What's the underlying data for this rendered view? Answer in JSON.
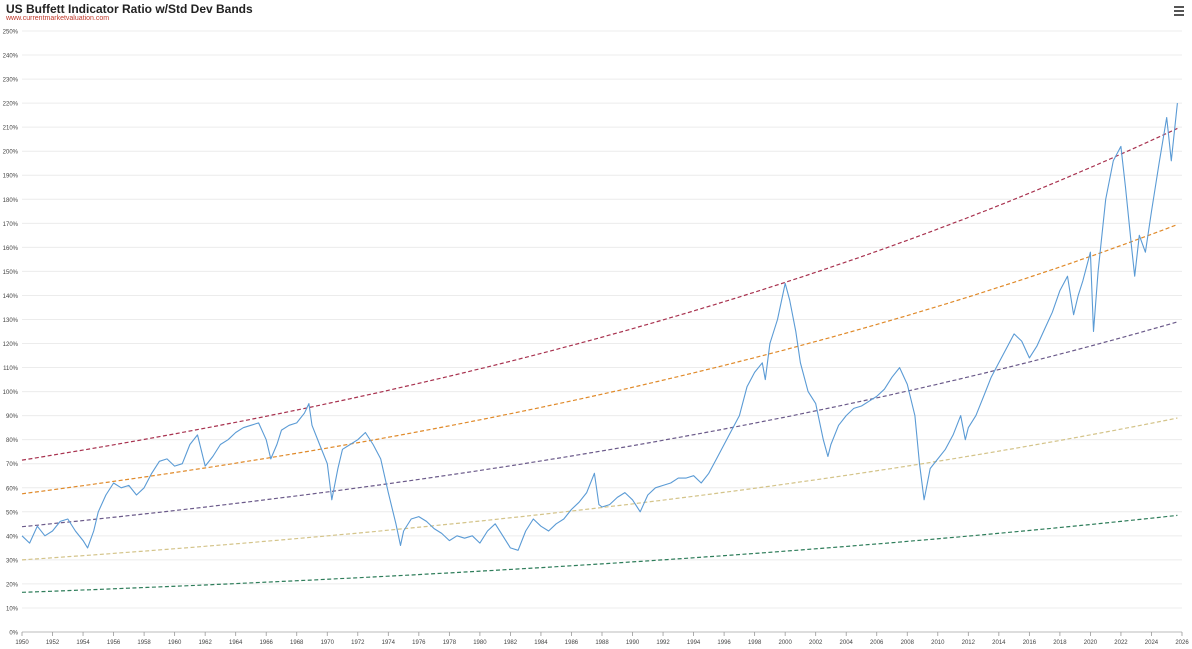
{
  "header": {
    "title": "US Buffett Indicator Ratio w/Std Dev Bands",
    "source": "www.currentmarketvaluation.com",
    "menu_icon": "hamburger-menu-icon"
  },
  "chart_data": {
    "type": "line",
    "title": "US Buffett Indicator Ratio w/Std Dev Bands",
    "xlabel": "",
    "ylabel": "",
    "xlim": [
      1950,
      2026
    ],
    "ylim": [
      0,
      250
    ],
    "grid": true,
    "y_ticks": [
      "0%",
      "10%",
      "20%",
      "30%",
      "40%",
      "50%",
      "60%",
      "70%",
      "80%",
      "90%",
      "100%",
      "110%",
      "120%",
      "130%",
      "140%",
      "150%",
      "160%",
      "170%",
      "180%",
      "190%",
      "200%",
      "210%",
      "220%",
      "230%",
      "240%",
      "250%"
    ],
    "x_ticks": [
      "1950",
      "1952",
      "1954",
      "1956",
      "1958",
      "1960",
      "1962",
      "1964",
      "1966",
      "1968",
      "1970",
      "1972",
      "1974",
      "1976",
      "1978",
      "1980",
      "1982",
      "1984",
      "1986",
      "1988",
      "1990",
      "1992",
      "1994",
      "1996",
      "1998",
      "2000",
      "2002",
      "2004",
      "2006",
      "2008",
      "2010",
      "2012",
      "2014",
      "2016",
      "2018",
      "2020",
      "2022",
      "2024",
      "2026"
    ],
    "bands": [
      {
        "color": "#a8324f",
        "start": 71.5,
        "end": 209.5
      },
      {
        "color": "#e08a2a",
        "start": 57.5,
        "end": 169.5
      },
      {
        "color": "#6b5a8a",
        "start": 43.8,
        "end": 129.0
      },
      {
        "color": "#d4c48a",
        "start": 30.0,
        "end": 89.0
      },
      {
        "color": "#2e7d5a",
        "start": 16.5,
        "end": 48.5
      }
    ],
    "series": [
      {
        "color": "#5b9bd5",
        "points": [
          [
            1950.0,
            40
          ],
          [
            1950.5,
            37
          ],
          [
            1951.0,
            44
          ],
          [
            1951.5,
            40
          ],
          [
            1952.0,
            42
          ],
          [
            1952.5,
            46
          ],
          [
            1953.0,
            47
          ],
          [
            1953.5,
            42
          ],
          [
            1954.0,
            38
          ],
          [
            1954.3,
            35
          ],
          [
            1954.7,
            42
          ],
          [
            1955.0,
            50
          ],
          [
            1955.5,
            57
          ],
          [
            1956.0,
            62
          ],
          [
            1956.5,
            60
          ],
          [
            1957.0,
            61
          ],
          [
            1957.5,
            57
          ],
          [
            1958.0,
            60
          ],
          [
            1958.5,
            66
          ],
          [
            1959.0,
            71
          ],
          [
            1959.5,
            72
          ],
          [
            1960.0,
            69
          ],
          [
            1960.5,
            70
          ],
          [
            1961.0,
            78
          ],
          [
            1961.5,
            82
          ],
          [
            1962.0,
            69
          ],
          [
            1962.5,
            73
          ],
          [
            1963.0,
            78
          ],
          [
            1963.5,
            80
          ],
          [
            1964.0,
            83
          ],
          [
            1964.5,
            85
          ],
          [
            1965.0,
            86
          ],
          [
            1965.5,
            87
          ],
          [
            1966.0,
            80
          ],
          [
            1966.3,
            72
          ],
          [
            1966.7,
            78
          ],
          [
            1967.0,
            84
          ],
          [
            1967.5,
            86
          ],
          [
            1968.0,
            87
          ],
          [
            1968.5,
            91
          ],
          [
            1968.8,
            95
          ],
          [
            1969.0,
            86
          ],
          [
            1969.5,
            78
          ],
          [
            1970.0,
            70
          ],
          [
            1970.3,
            55
          ],
          [
            1970.7,
            68
          ],
          [
            1971.0,
            76
          ],
          [
            1971.5,
            78
          ],
          [
            1972.0,
            80
          ],
          [
            1972.5,
            83
          ],
          [
            1973.0,
            78
          ],
          [
            1973.5,
            72
          ],
          [
            1974.0,
            58
          ],
          [
            1974.5,
            45
          ],
          [
            1974.8,
            36
          ],
          [
            1975.0,
            42
          ],
          [
            1975.5,
            47
          ],
          [
            1976.0,
            48
          ],
          [
            1976.5,
            46
          ],
          [
            1977.0,
            43
          ],
          [
            1977.5,
            41
          ],
          [
            1978.0,
            38
          ],
          [
            1978.5,
            40
          ],
          [
            1979.0,
            39
          ],
          [
            1979.5,
            40
          ],
          [
            1980.0,
            37
          ],
          [
            1980.5,
            42
          ],
          [
            1981.0,
            45
          ],
          [
            1981.5,
            40
          ],
          [
            1982.0,
            35
          ],
          [
            1982.5,
            34
          ],
          [
            1983.0,
            42
          ],
          [
            1983.5,
            47
          ],
          [
            1984.0,
            44
          ],
          [
            1984.5,
            42
          ],
          [
            1985.0,
            45
          ],
          [
            1985.5,
            47
          ],
          [
            1986.0,
            51
          ],
          [
            1986.5,
            54
          ],
          [
            1987.0,
            58
          ],
          [
            1987.5,
            66
          ],
          [
            1987.8,
            53
          ],
          [
            1988.0,
            52
          ],
          [
            1988.5,
            53
          ],
          [
            1989.0,
            56
          ],
          [
            1989.5,
            58
          ],
          [
            1990.0,
            55
          ],
          [
            1990.5,
            50
          ],
          [
            1991.0,
            57
          ],
          [
            1991.5,
            60
          ],
          [
            1992.0,
            61
          ],
          [
            1992.5,
            62
          ],
          [
            1993.0,
            64
          ],
          [
            1993.5,
            64
          ],
          [
            1994.0,
            65
          ],
          [
            1994.5,
            62
          ],
          [
            1995.0,
            66
          ],
          [
            1995.5,
            72
          ],
          [
            1996.0,
            78
          ],
          [
            1996.5,
            84
          ],
          [
            1997.0,
            90
          ],
          [
            1997.5,
            102
          ],
          [
            1998.0,
            108
          ],
          [
            1998.5,
            112
          ],
          [
            1998.7,
            105
          ],
          [
            1999.0,
            120
          ],
          [
            1999.5,
            130
          ],
          [
            2000.0,
            145
          ],
          [
            2000.3,
            138
          ],
          [
            2000.7,
            125
          ],
          [
            2001.0,
            112
          ],
          [
            2001.5,
            100
          ],
          [
            2002.0,
            95
          ],
          [
            2002.5,
            80
          ],
          [
            2002.8,
            73
          ],
          [
            2003.0,
            78
          ],
          [
            2003.5,
            86
          ],
          [
            2004.0,
            90
          ],
          [
            2004.5,
            93
          ],
          [
            2005.0,
            94
          ],
          [
            2005.5,
            96
          ],
          [
            2006.0,
            98
          ],
          [
            2006.5,
            101
          ],
          [
            2007.0,
            106
          ],
          [
            2007.5,
            110
          ],
          [
            2008.0,
            103
          ],
          [
            2008.5,
            90
          ],
          [
            2008.8,
            70
          ],
          [
            2009.1,
            55
          ],
          [
            2009.5,
            68
          ],
          [
            2010.0,
            72
          ],
          [
            2010.5,
            76
          ],
          [
            2011.0,
            82
          ],
          [
            2011.5,
            90
          ],
          [
            2011.8,
            80
          ],
          [
            2012.0,
            85
          ],
          [
            2012.5,
            90
          ],
          [
            2013.0,
            98
          ],
          [
            2013.5,
            106
          ],
          [
            2014.0,
            112
          ],
          [
            2014.5,
            118
          ],
          [
            2015.0,
            124
          ],
          [
            2015.5,
            121
          ],
          [
            2016.0,
            114
          ],
          [
            2016.5,
            119
          ],
          [
            2017.0,
            126
          ],
          [
            2017.5,
            133
          ],
          [
            2018.0,
            142
          ],
          [
            2018.5,
            148
          ],
          [
            2018.9,
            132
          ],
          [
            2019.2,
            140
          ],
          [
            2019.5,
            146
          ],
          [
            2020.0,
            158
          ],
          [
            2020.2,
            125
          ],
          [
            2020.5,
            150
          ],
          [
            2021.0,
            180
          ],
          [
            2021.5,
            196
          ],
          [
            2022.0,
            202
          ],
          [
            2022.3,
            185
          ],
          [
            2022.7,
            160
          ],
          [
            2022.9,
            148
          ],
          [
            2023.2,
            165
          ],
          [
            2023.6,
            158
          ],
          [
            2024.0,
            175
          ],
          [
            2024.5,
            195
          ],
          [
            2025.0,
            214
          ],
          [
            2025.3,
            196
          ],
          [
            2025.7,
            220
          ]
        ]
      }
    ]
  }
}
